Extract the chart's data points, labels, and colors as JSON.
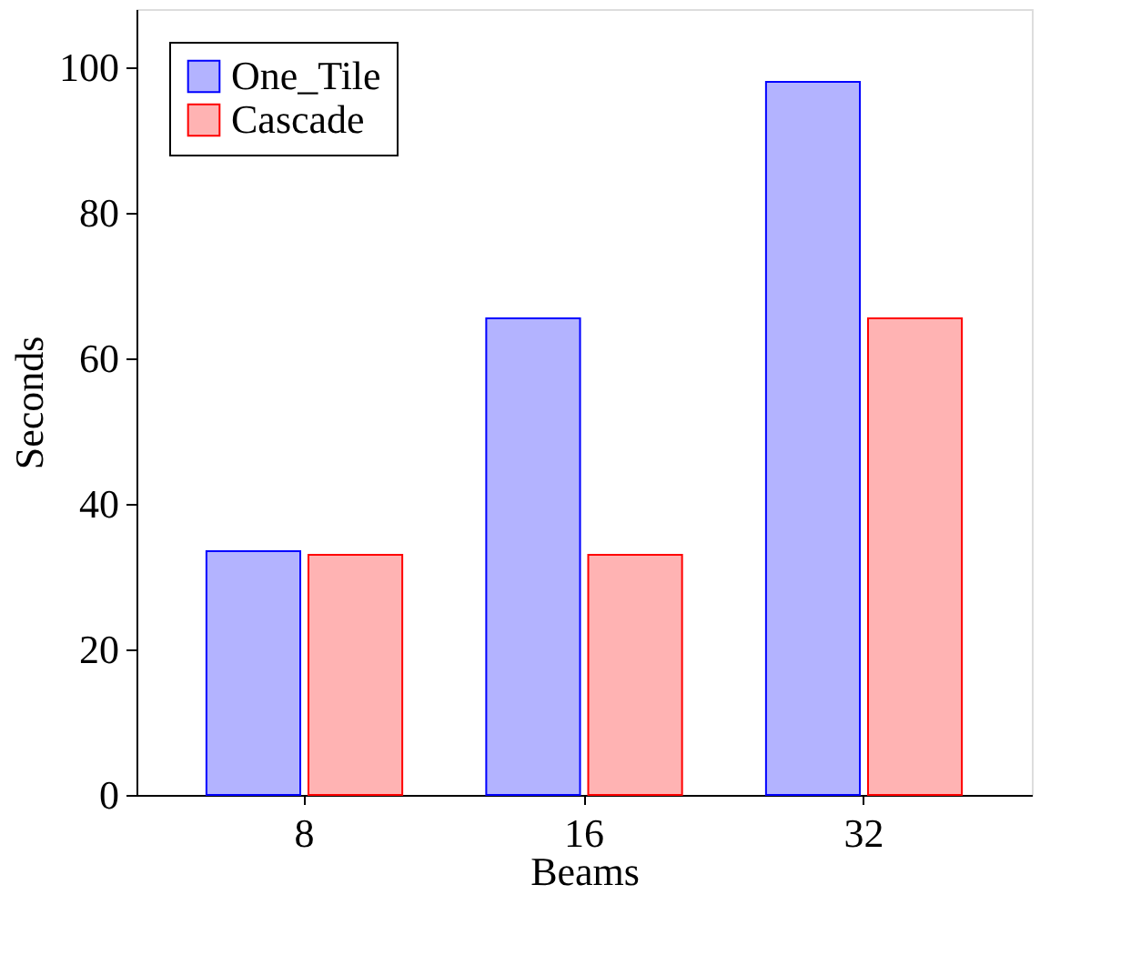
{
  "chart_data": {
    "type": "bar",
    "xlabel": "Beams",
    "ylabel": "Seconds",
    "categories": [
      "8",
      "16",
      "32"
    ],
    "series": [
      {
        "name": "One_Tile",
        "color": "#b3b3ff",
        "values": [
          33.5,
          65.5,
          98
        ]
      },
      {
        "name": "Cascade",
        "color": "#ffb3b3",
        "values": [
          33,
          33,
          65.5
        ]
      }
    ],
    "ylim": [
      0,
      108
    ],
    "yticks": [
      0,
      20,
      40,
      60,
      80,
      100
    ],
    "grid": false,
    "legend": "top left"
  }
}
